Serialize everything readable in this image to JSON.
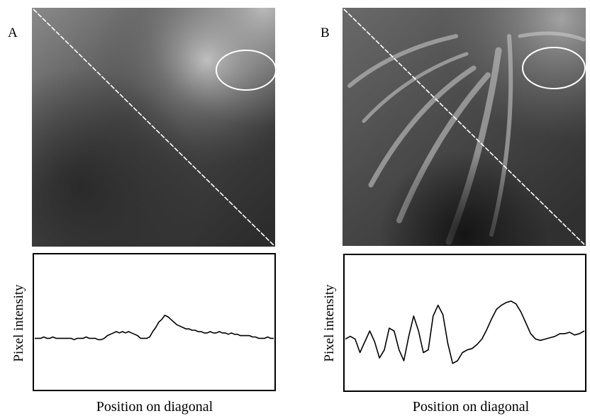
{
  "panels": [
    {
      "letter": "A",
      "profile_ylabel": "Pixel intensity",
      "profile_xlabel": "Position on diagonal",
      "profile": [
        0.38,
        0.38,
        0.38,
        0.39,
        0.38,
        0.38,
        0.39,
        0.38,
        0.38,
        0.38,
        0.38,
        0.38,
        0.38,
        0.37,
        0.38,
        0.38,
        0.38,
        0.39,
        0.38,
        0.38,
        0.38,
        0.37,
        0.37,
        0.38,
        0.4,
        0.41,
        0.42,
        0.43,
        0.42,
        0.43,
        0.42,
        0.43,
        0.42,
        0.41,
        0.4,
        0.38,
        0.38,
        0.38,
        0.39,
        0.43,
        0.46,
        0.5,
        0.52,
        0.55,
        0.54,
        0.52,
        0.5,
        0.48,
        0.47,
        0.46,
        0.45,
        0.45,
        0.44,
        0.44,
        0.43,
        0.43,
        0.42,
        0.42,
        0.43,
        0.42,
        0.42,
        0.43,
        0.42,
        0.42,
        0.41,
        0.42,
        0.41,
        0.41,
        0.4,
        0.4,
        0.4,
        0.4,
        0.39,
        0.39,
        0.38,
        0.38,
        0.38,
        0.39,
        0.38,
        0.38
      ]
    },
    {
      "letter": "B",
      "profile_ylabel": "Pixel intensity",
      "profile_xlabel": "Position on diagonal",
      "profile": [
        0.38,
        0.4,
        0.38,
        0.28,
        0.36,
        0.44,
        0.36,
        0.24,
        0.3,
        0.46,
        0.44,
        0.3,
        0.22,
        0.4,
        0.55,
        0.44,
        0.28,
        0.3,
        0.55,
        0.63,
        0.56,
        0.35,
        0.2,
        0.22,
        0.28,
        0.3,
        0.31,
        0.34,
        0.38,
        0.45,
        0.53,
        0.6,
        0.63,
        0.65,
        0.66,
        0.64,
        0.58,
        0.5,
        0.42,
        0.38,
        0.37,
        0.38,
        0.39,
        0.4,
        0.42,
        0.42,
        0.43,
        0.41,
        0.42,
        0.44
      ]
    }
  ]
}
